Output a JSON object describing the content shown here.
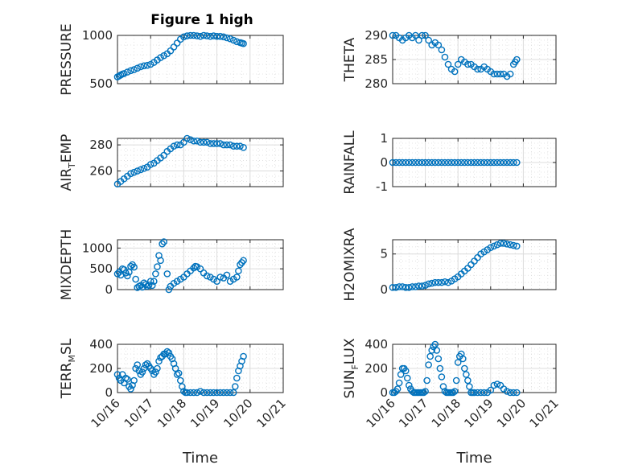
{
  "title": "Figure 1 high",
  "x_label": "Time",
  "x_tick_labels": [
    "10/16",
    "10/17",
    "10/18",
    "10/19",
    "10/20",
    "10/21"
  ],
  "colors": {
    "marker": "#0072BD",
    "axis": "#262626",
    "grid": "#dcdcdc",
    "box": "#ffffff"
  },
  "chart_data": [
    {
      "type": "scatter",
      "ylabel": "PRESSURE",
      "ylim": [
        500,
        1000
      ],
      "yticks": [
        500,
        1000
      ],
      "x": [
        0,
        0.05,
        0.1,
        0.15,
        0.2,
        0.3,
        0.4,
        0.5,
        0.6,
        0.7,
        0.8,
        0.9,
        1.0,
        1.1,
        1.2,
        1.3,
        1.4,
        1.5,
        1.6,
        1.7,
        1.8,
        1.9,
        2.0,
        2.1,
        2.2,
        2.3,
        2.4,
        2.5,
        2.6,
        2.7,
        2.8,
        2.9,
        3.0,
        3.1,
        3.2,
        3.3,
        3.4,
        3.5,
        3.6,
        3.7,
        3.75,
        3.8
      ],
      "y": [
        570,
        580,
        590,
        600,
        605,
        620,
        635,
        645,
        660,
        675,
        685,
        690,
        700,
        720,
        745,
        770,
        790,
        810,
        840,
        880,
        920,
        960,
        985,
        995,
        1000,
        1000,
        995,
        990,
        1000,
        995,
        990,
        995,
        990,
        990,
        985,
        975,
        965,
        950,
        935,
        925,
        920,
        915
      ]
    },
    {
      "type": "scatter",
      "ylabel": "THETA",
      "ylim": [
        280,
        290
      ],
      "yticks": [
        280,
        285,
        290
      ],
      "x": [
        0,
        0.1,
        0.2,
        0.3,
        0.4,
        0.5,
        0.6,
        0.7,
        0.8,
        0.9,
        1.0,
        1.1,
        1.2,
        1.3,
        1.4,
        1.5,
        1.6,
        1.7,
        1.8,
        1.9,
        2.0,
        2.1,
        2.2,
        2.3,
        2.4,
        2.5,
        2.6,
        2.7,
        2.8,
        2.9,
        3.0,
        3.1,
        3.2,
        3.3,
        3.4,
        3.5,
        3.6,
        3.7,
        3.75,
        3.8
      ],
      "y": [
        290,
        290,
        289.5,
        289,
        289.5,
        290,
        289.5,
        290,
        289,
        290,
        290,
        289,
        288,
        288.5,
        288,
        287,
        285.5,
        284,
        283,
        282.5,
        284,
        285,
        284.5,
        284,
        284,
        283.5,
        283,
        283,
        283.5,
        283,
        282.5,
        282,
        282,
        282,
        282,
        281.5,
        282,
        284,
        284.5,
        285
      ]
    },
    {
      "type": "scatter",
      "ylabel": "AIR_TEMP",
      "ylim": [
        248,
        285
      ],
      "yticks": [
        260,
        280
      ],
      "x": [
        0,
        0.1,
        0.2,
        0.3,
        0.4,
        0.5,
        0.6,
        0.7,
        0.8,
        0.9,
        1.0,
        1.1,
        1.2,
        1.3,
        1.4,
        1.5,
        1.6,
        1.7,
        1.8,
        1.9,
        2.0,
        2.1,
        2.2,
        2.3,
        2.4,
        2.5,
        2.6,
        2.7,
        2.8,
        2.9,
        3.0,
        3.1,
        3.2,
        3.3,
        3.4,
        3.5,
        3.6,
        3.7,
        3.8
      ],
      "y": [
        250,
        252,
        254,
        256,
        258,
        259,
        260,
        261,
        262,
        263,
        265,
        266,
        268,
        270,
        272,
        275,
        277,
        279,
        280,
        280,
        282,
        285,
        284,
        283,
        283,
        282,
        282,
        282,
        281,
        281,
        281,
        281,
        280,
        280,
        280,
        279,
        279,
        279,
        278
      ]
    },
    {
      "type": "scatter",
      "ylabel": "RAINFALL",
      "ylim": [
        -1,
        1
      ],
      "yticks": [
        -1,
        0,
        1
      ],
      "x": [
        0,
        0.1,
        0.2,
        0.3,
        0.4,
        0.5,
        0.6,
        0.7,
        0.8,
        0.9,
        1.0,
        1.1,
        1.2,
        1.3,
        1.4,
        1.5,
        1.6,
        1.7,
        1.8,
        1.9,
        2.0,
        2.1,
        2.2,
        2.3,
        2.4,
        2.5,
        2.6,
        2.7,
        2.8,
        2.9,
        3.0,
        3.1,
        3.2,
        3.3,
        3.4,
        3.5,
        3.6,
        3.7,
        3.8
      ],
      "y": [
        0,
        0,
        0,
        0,
        0,
        0,
        0,
        0,
        0,
        0,
        0,
        0,
        0,
        0,
        0,
        0,
        0,
        0,
        0,
        0,
        0,
        0,
        0,
        0,
        0,
        0,
        0,
        0,
        0,
        0,
        0,
        0,
        0,
        0,
        0,
        0,
        0,
        0,
        0
      ]
    },
    {
      "type": "scatter",
      "ylabel": "MIXDEPTH",
      "ylim": [
        0,
        1200
      ],
      "yticks": [
        0,
        500,
        1000
      ],
      "x": [
        0,
        0.05,
        0.1,
        0.15,
        0.2,
        0.25,
        0.3,
        0.35,
        0.4,
        0.45,
        0.5,
        0.55,
        0.6,
        0.65,
        0.7,
        0.75,
        0.8,
        0.85,
        0.9,
        0.95,
        1.0,
        1.05,
        1.1,
        1.15,
        1.2,
        1.25,
        1.3,
        1.35,
        1.4,
        1.5,
        1.55,
        1.6,
        1.7,
        1.8,
        1.9,
        2.0,
        2.1,
        2.2,
        2.3,
        2.35,
        2.4,
        2.5,
        2.6,
        2.7,
        2.8,
        2.9,
        3.0,
        3.1,
        3.2,
        3.3,
        3.4,
        3.5,
        3.6,
        3.65,
        3.7,
        3.75,
        3.8
      ],
      "y": [
        380,
        420,
        350,
        500,
        480,
        400,
        330,
        420,
        560,
        600,
        540,
        250,
        50,
        80,
        100,
        60,
        160,
        120,
        80,
        110,
        200,
        100,
        200,
        380,
        550,
        820,
        700,
        1100,
        1150,
        380,
        0,
        80,
        150,
        200,
        250,
        300,
        380,
        450,
        520,
        560,
        550,
        500,
        400,
        330,
        300,
        250,
        200,
        300,
        280,
        350,
        200,
        250,
        300,
        450,
        600,
        650,
        700
      ]
    },
    {
      "type": "scatter",
      "ylabel": "H2OMIXRA",
      "ylim": [
        0,
        7
      ],
      "yticks": [
        0,
        5
      ],
      "x": [
        0,
        0.1,
        0.2,
        0.3,
        0.4,
        0.5,
        0.6,
        0.7,
        0.8,
        0.9,
        1.0,
        1.1,
        1.2,
        1.3,
        1.4,
        1.5,
        1.6,
        1.7,
        1.8,
        1.9,
        2.0,
        2.1,
        2.2,
        2.3,
        2.4,
        2.5,
        2.6,
        2.7,
        2.8,
        2.9,
        3.0,
        3.1,
        3.2,
        3.3,
        3.4,
        3.5,
        3.6,
        3.7,
        3.8
      ],
      "y": [
        0.3,
        0.3,
        0.4,
        0.4,
        0.3,
        0.3,
        0.4,
        0.4,
        0.5,
        0.5,
        0.6,
        0.8,
        0.9,
        1.0,
        1.0,
        1.0,
        1.1,
        1.0,
        1.2,
        1.5,
        1.8,
        2.2,
        2.6,
        3.0,
        3.5,
        4.0,
        4.5,
        5.0,
        5.3,
        5.6,
        5.9,
        6.1,
        6.3,
        6.5,
        6.5,
        6.4,
        6.3,
        6.2,
        6.1
      ]
    },
    {
      "type": "scatter",
      "ylabel": "TERR_MSL",
      "ylim": [
        0,
        400
      ],
      "yticks": [
        0,
        200,
        400
      ],
      "x": [
        0,
        0.05,
        0.1,
        0.15,
        0.2,
        0.25,
        0.3,
        0.35,
        0.4,
        0.45,
        0.5,
        0.55,
        0.6,
        0.65,
        0.7,
        0.75,
        0.8,
        0.85,
        0.9,
        0.95,
        1.0,
        1.05,
        1.1,
        1.15,
        1.2,
        1.25,
        1.3,
        1.35,
        1.4,
        1.45,
        1.5,
        1.55,
        1.6,
        1.65,
        1.7,
        1.75,
        1.8,
        1.85,
        1.9,
        1.95,
        2.0,
        2.05,
        2.1,
        2.2,
        2.3,
        2.4,
        2.5,
        2.6,
        2.7,
        2.8,
        2.9,
        3.0,
        3.1,
        3.2,
        3.3,
        3.4,
        3.5,
        3.55,
        3.6,
        3.65,
        3.7,
        3.75,
        3.8
      ],
      "y": [
        150,
        120,
        100,
        150,
        80,
        120,
        110,
        50,
        30,
        60,
        100,
        200,
        230,
        180,
        150,
        170,
        200,
        230,
        240,
        220,
        200,
        180,
        150,
        170,
        200,
        260,
        290,
        300,
        320,
        320,
        340,
        330,
        300,
        280,
        240,
        200,
        150,
        160,
        100,
        50,
        10,
        0,
        0,
        0,
        0,
        0,
        10,
        0,
        0,
        0,
        0,
        0,
        0,
        0,
        0,
        0,
        0,
        50,
        120,
        180,
        220,
        260,
        300
      ]
    },
    {
      "type": "scatter",
      "ylabel": "SUN_FLUX",
      "ylim": [
        0,
        400
      ],
      "yticks": [
        0,
        200,
        400
      ],
      "x": [
        0,
        0.05,
        0.1,
        0.15,
        0.2,
        0.25,
        0.3,
        0.35,
        0.4,
        0.45,
        0.5,
        0.55,
        0.6,
        0.65,
        0.7,
        0.75,
        0.8,
        0.85,
        0.9,
        0.95,
        1.0,
        1.05,
        1.1,
        1.15,
        1.2,
        1.25,
        1.3,
        1.35,
        1.4,
        1.45,
        1.5,
        1.55,
        1.6,
        1.65,
        1.7,
        1.75,
        1.8,
        1.85,
        1.9,
        1.95,
        2.0,
        2.05,
        2.1,
        2.15,
        2.2,
        2.25,
        2.3,
        2.35,
        2.4,
        2.45,
        2.5,
        2.6,
        2.7,
        2.8,
        2.9,
        3.0,
        3.1,
        3.2,
        3.3,
        3.4,
        3.5,
        3.6,
        3.7,
        3.8
      ],
      "y": [
        0,
        0,
        10,
        30,
        80,
        150,
        200,
        200,
        180,
        120,
        60,
        30,
        10,
        0,
        0,
        0,
        0,
        0,
        0,
        0,
        10,
        100,
        230,
        300,
        350,
        380,
        400,
        350,
        280,
        200,
        130,
        50,
        10,
        0,
        0,
        0,
        0,
        0,
        10,
        100,
        250,
        300,
        320,
        280,
        200,
        150,
        100,
        50,
        0,
        0,
        0,
        0,
        0,
        0,
        0,
        20,
        60,
        70,
        60,
        30,
        10,
        0,
        0,
        0
      ]
    }
  ]
}
